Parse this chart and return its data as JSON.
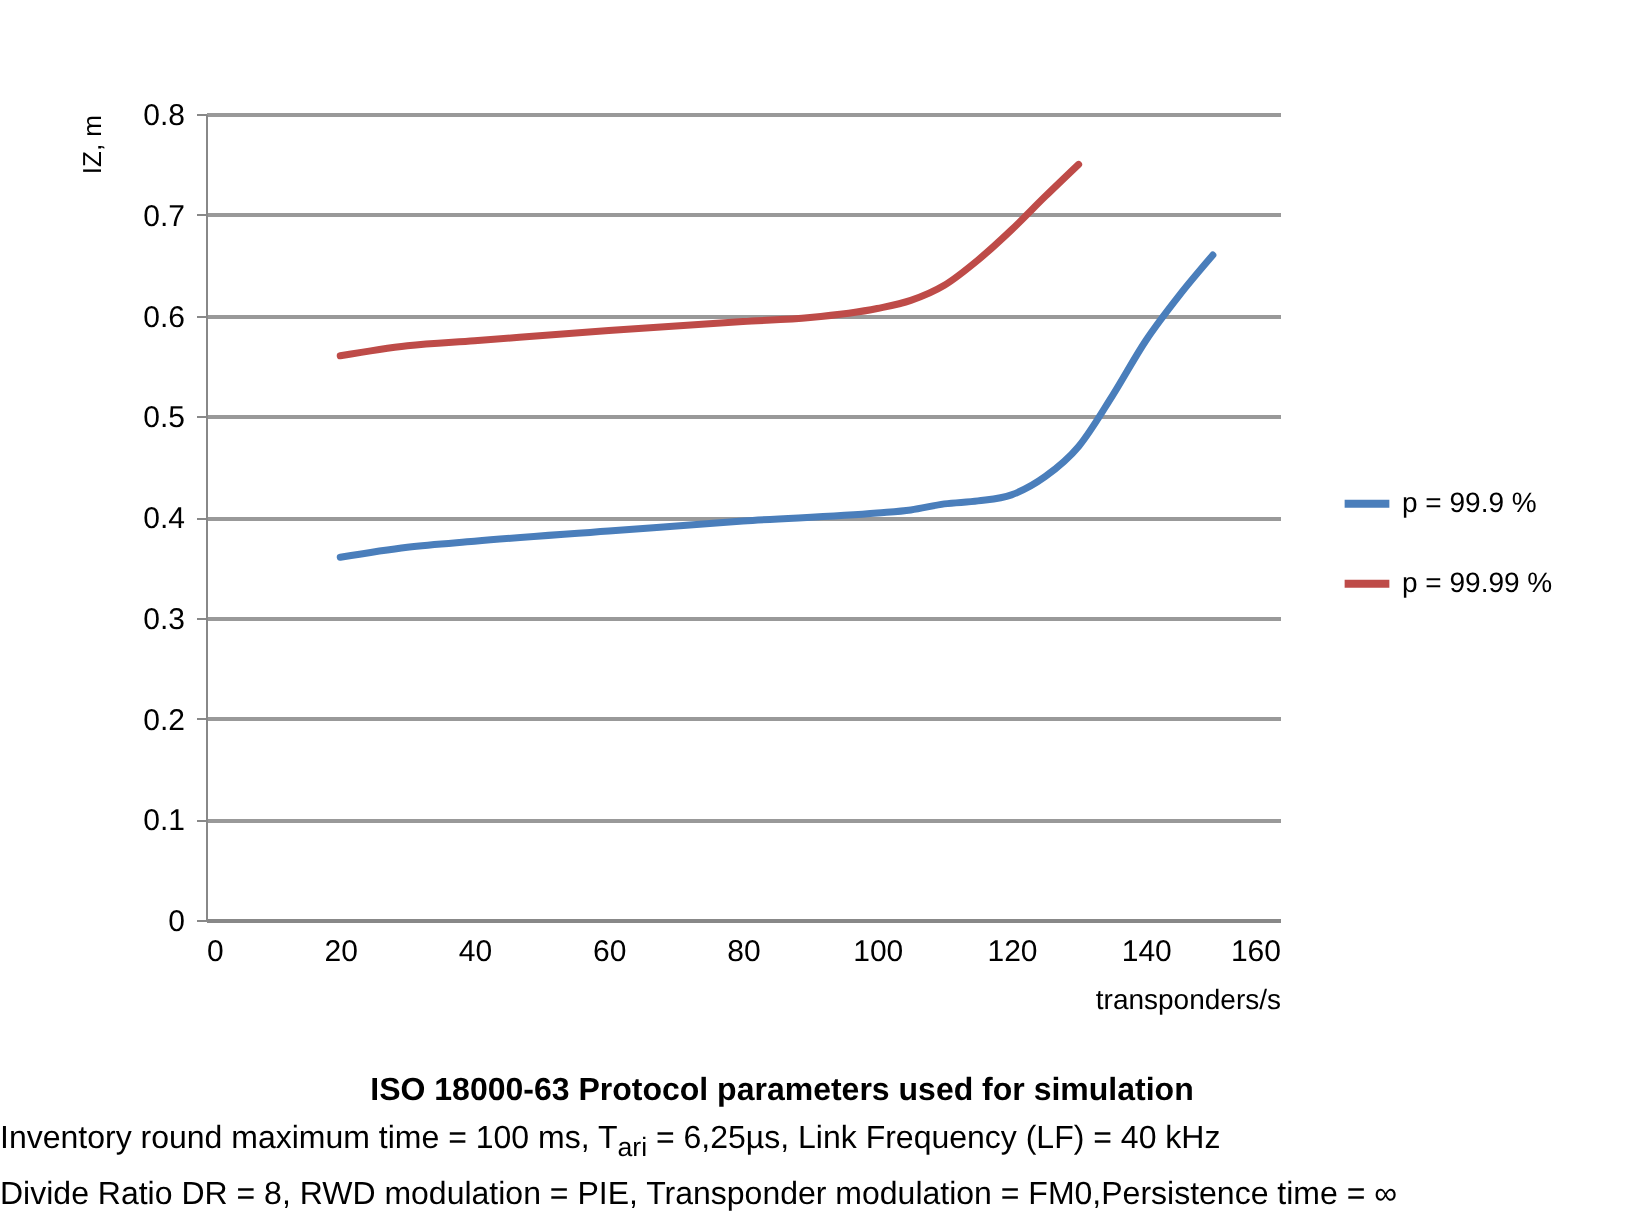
{
  "chart_data": {
    "type": "line",
    "title": "ISO 18000-63 Protocol parameters used for simulation",
    "xlabel": "transponders/s",
    "ylabel": "IZ, m",
    "annotations": [
      "Inventory round maximum time  =  100 ms, T$_{ari}$ = 6,25µs, Link Frequency (LF) =  40 kHz",
      "Divide Ratio DR =  8, RWD modulation = PIE, Transponder modulation = FM0,Persistence time =  ∞"
    ],
    "series": [
      {
        "name": "p = 99.9 %",
        "color": "#4a7ebb",
        "x": [
          20,
          30,
          40,
          60,
          80,
          100,
          105,
          110,
          115,
          120,
          125,
          130,
          135,
          140,
          145,
          150
        ],
        "values": [
          0.36,
          0.37,
          0.376,
          0.386,
          0.396,
          0.404,
          0.407,
          0.413,
          0.416,
          0.422,
          0.44,
          0.47,
          0.52,
          0.575,
          0.62,
          0.66
        ]
      },
      {
        "name": "p = 99.99 %",
        "color": "#be4b48",
        "x": [
          20,
          30,
          40,
          60,
          80,
          90,
          100,
          105,
          110,
          115,
          120,
          125,
          130
        ],
        "values": [
          0.56,
          0.57,
          0.575,
          0.585,
          0.594,
          0.598,
          0.607,
          0.615,
          0.63,
          0.655,
          0.685,
          0.718,
          0.75
        ]
      }
    ],
    "xlim": [
      0,
      160
    ],
    "xticks": [
      0,
      20,
      40,
      60,
      80,
      100,
      120,
      140,
      160
    ],
    "ylim": [
      0,
      0.8
    ],
    "yticks": [
      0,
      0.1,
      0.2,
      0.3,
      0.4,
      0.5,
      0.6,
      0.7,
      0.8
    ],
    "grid": "y",
    "legend": "right",
    "marker": "none",
    "line_style": "solid"
  }
}
